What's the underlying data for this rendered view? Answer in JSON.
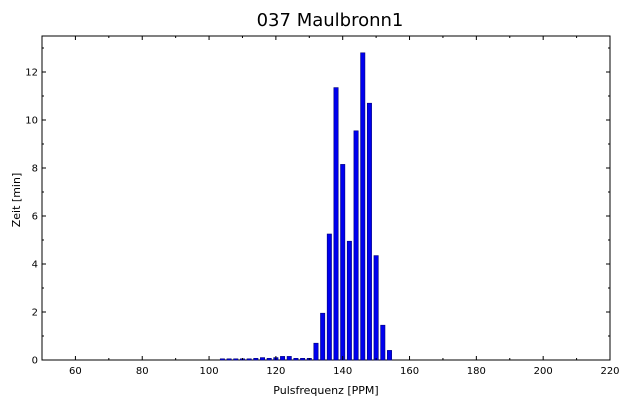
{
  "chart_data": {
    "type": "bar",
    "title": "037 Maulbronn1",
    "xlabel": "Pulsfrequenz [PPM]",
    "ylabel": "Zeit [min]",
    "xlim": [
      50,
      220
    ],
    "ylim": [
      0,
      13.5
    ],
    "x_ticks": [
      60,
      80,
      100,
      120,
      140,
      160,
      180,
      200,
      220
    ],
    "y_ticks": [
      0,
      2,
      4,
      6,
      8,
      10,
      12
    ],
    "bar_width": 1.3,
    "grid": false,
    "colors": {
      "bar_fill": "#0000ee",
      "bar_edge": "#00007a",
      "axis": "#000000"
    },
    "x": [
      104,
      106,
      108,
      110,
      112,
      114,
      116,
      118,
      120,
      122,
      124,
      126,
      128,
      130,
      132,
      134,
      136,
      138,
      140,
      142,
      144,
      146,
      148,
      150,
      152,
      154
    ],
    "values": [
      0.05,
      0.05,
      0.05,
      0.05,
      0.05,
      0.07,
      0.1,
      0.07,
      0.1,
      0.15,
      0.15,
      0.07,
      0.07,
      0.07,
      0.7,
      1.95,
      5.25,
      11.35,
      8.15,
      4.95,
      9.55,
      12.8,
      10.7,
      4.35,
      1.45,
      0.4
    ]
  }
}
